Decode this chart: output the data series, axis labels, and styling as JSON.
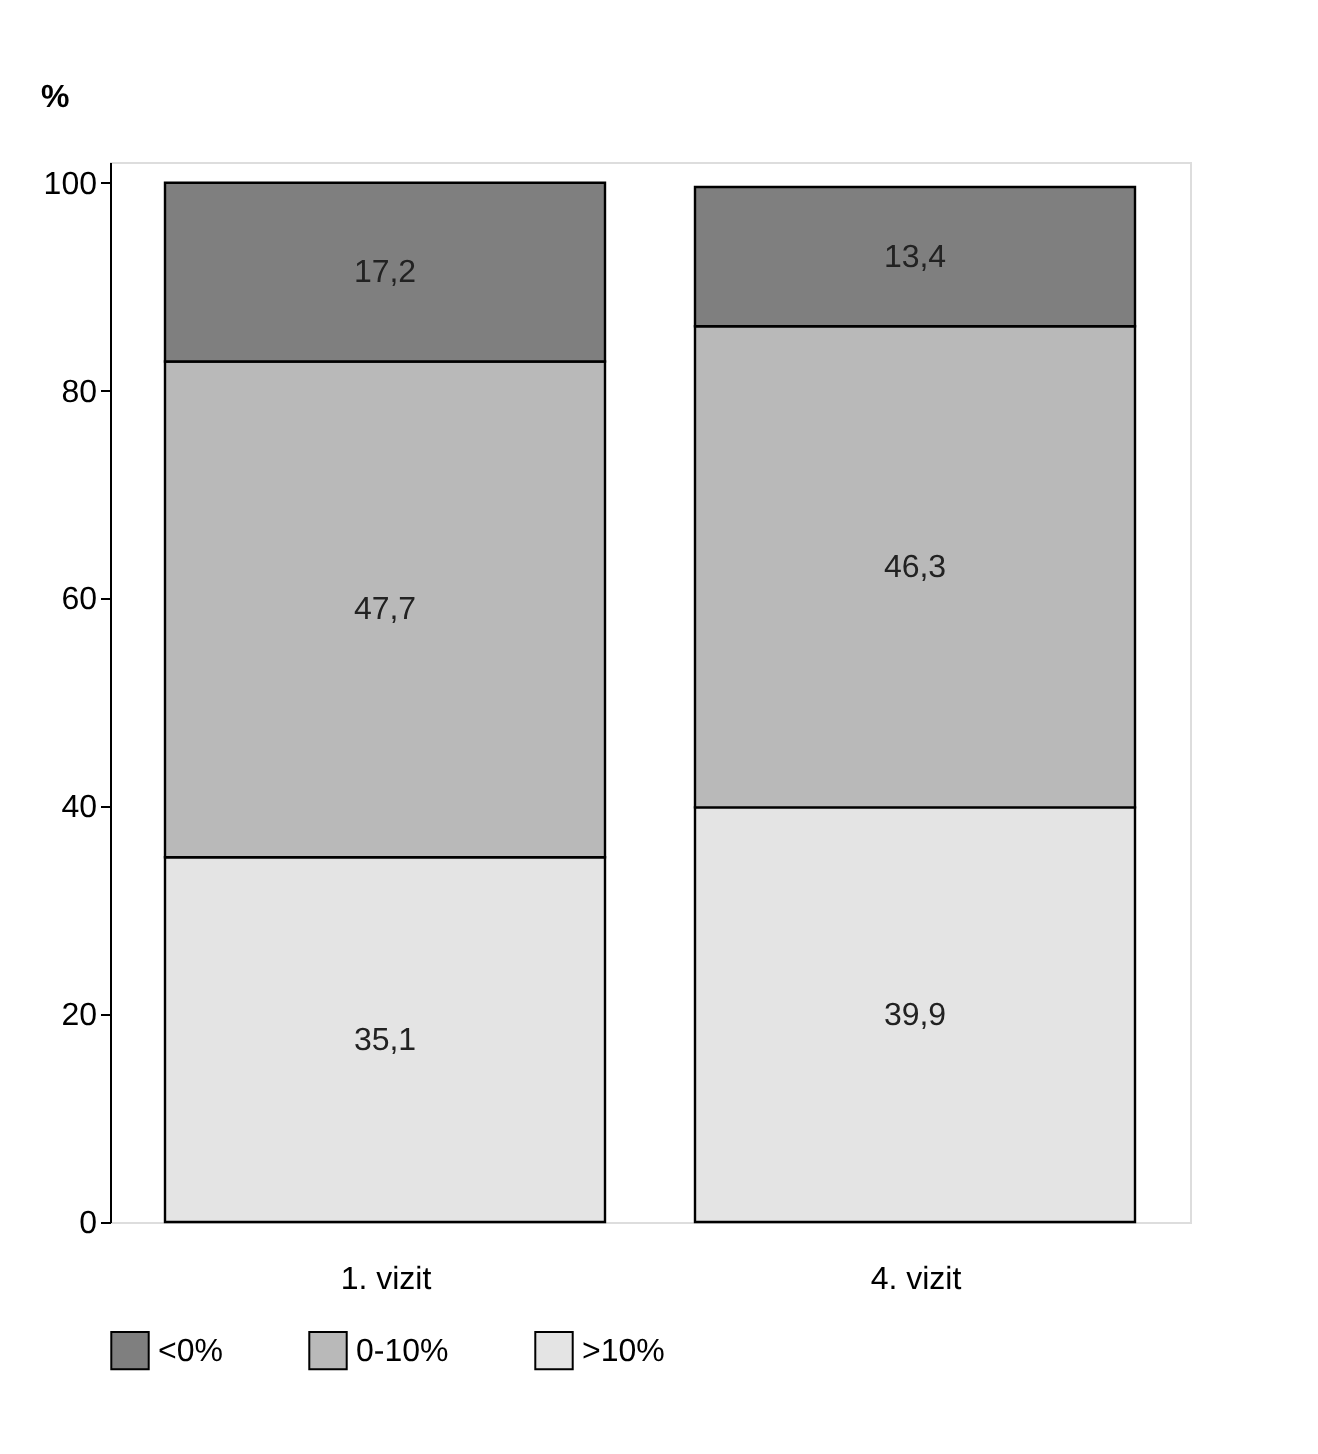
{
  "chart_data": {
    "type": "bar",
    "stacked": true,
    "ylabel": "%",
    "categories": [
      "1. vizit",
      "4. vizit"
    ],
    "series": [
      {
        "name": ">10%",
        "color": "#e4e4e4",
        "values": [
          35.1,
          39.9
        ],
        "value_labels": [
          "35,1",
          "39,9"
        ]
      },
      {
        "name": "0-10%",
        "color": "#b9b9b9",
        "values": [
          47.7,
          46.3
        ],
        "value_labels": [
          "47,7",
          "46,3"
        ]
      },
      {
        "name": "<0%",
        "color": "#7f7f7f",
        "values": [
          17.2,
          13.4
        ],
        "value_labels": [
          "17,2",
          "13,4"
        ]
      }
    ],
    "ylim": [
      0,
      102
    ],
    "yticks": [
      0,
      20,
      40,
      60,
      80,
      100
    ],
    "grid": false,
    "legend": "bottom"
  }
}
